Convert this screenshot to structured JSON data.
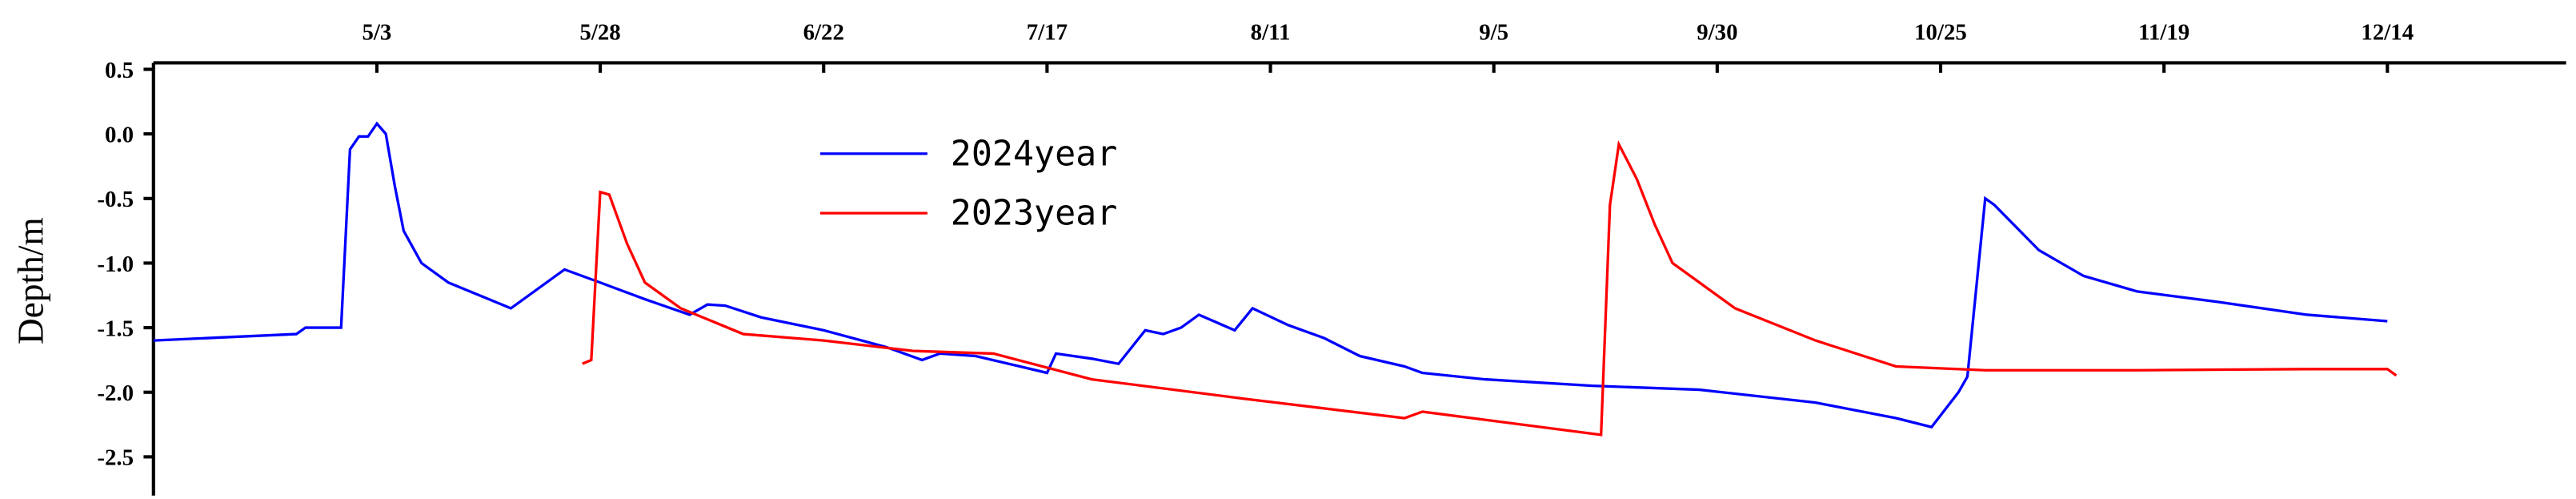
{
  "chart_data": {
    "type": "line",
    "y_label": "Depth/m",
    "xlim": [
      "4/8",
      "1/3"
    ],
    "xticks": [
      "5/3",
      "5/28",
      "6/22",
      "7/17",
      "8/11",
      "9/5",
      "9/30",
      "10/25",
      "11/19",
      "12/14"
    ],
    "ylim": [
      -2.8,
      0.55
    ],
    "yticks": [
      0.5,
      {
        "value": 0,
        "label": "0.0"
      },
      -0.5,
      {
        "value": -1,
        "label": "-1.0"
      },
      -1.5,
      {
        "value": -2,
        "label": "-2.0"
      },
      -2.5
    ],
    "series": [
      {
        "name": "2024year",
        "color": "#0000ff",
        "x": [
          "4/8",
          "4/24",
          "4/25",
          "4/29",
          "4/30",
          "5/1",
          "5/2",
          "5/3",
          "5/4",
          "5/5",
          "5/6",
          "5/8",
          "5/11",
          "5/18",
          "5/20",
          "5/24",
          "5/28",
          "6/2",
          "6/7",
          "6/9",
          "6/11",
          "6/15",
          "6/22",
          "6/29",
          "7/3",
          "7/5",
          "7/9",
          "7/17",
          "7/18",
          "7/22",
          "7/25",
          "7/28",
          "7/30",
          "8/1",
          "8/3",
          "8/7",
          "8/9",
          "8/13",
          "8/17",
          "8/21",
          "8/26",
          "8/28",
          "9/4",
          "9/16",
          "9/28",
          "10/11",
          "10/20",
          "10/24",
          "10/27",
          "10/28",
          "10/30",
          "10/31",
          "11/5",
          "11/10",
          "11/16",
          "11/25",
          "12/5",
          "12/14"
        ],
        "values": [
          -1.6,
          -1.55,
          -1.5,
          -1.5,
          -0.12,
          -0.02,
          -0.02,
          0.08,
          0.0,
          -0.4,
          -0.75,
          -1.0,
          -1.15,
          -1.35,
          -1.25,
          -1.05,
          -1.15,
          -1.28,
          -1.4,
          -1.32,
          -1.33,
          -1.42,
          -1.52,
          -1.65,
          -1.75,
          -1.7,
          -1.72,
          -1.85,
          -1.7,
          -1.74,
          -1.78,
          -1.52,
          -1.55,
          -1.5,
          -1.4,
          -1.52,
          -1.35,
          -1.48,
          -1.58,
          -1.72,
          -1.8,
          -1.85,
          -1.9,
          -1.95,
          -1.98,
          -2.08,
          -2.2,
          -2.27,
          -2.0,
          -1.88,
          -0.5,
          -0.55,
          -0.9,
          -1.1,
          -1.22,
          -1.3,
          -1.4,
          -1.45
        ]
      },
      {
        "name": "2023year",
        "color": "#ff0000",
        "x": [
          "5/26",
          "5/27",
          "5/28",
          "5/29",
          "5/31",
          "6/2",
          "6/6",
          "6/13",
          "6/22",
          "7/2",
          "7/11",
          "7/22",
          "8/8",
          "8/26",
          "8/28",
          "9/17",
          "9/18",
          "9/19",
          "9/21",
          "9/23",
          "9/25",
          "9/27",
          "10/2",
          "10/11",
          "10/20",
          "10/30",
          "11/16",
          "12/5",
          "12/14",
          "12/15"
        ],
        "values": [
          -1.78,
          -1.75,
          -0.45,
          -0.47,
          -0.85,
          -1.15,
          -1.35,
          -1.55,
          -1.6,
          -1.68,
          -1.7,
          -1.9,
          -2.05,
          -2.2,
          -2.15,
          -2.33,
          -0.55,
          -0.08,
          -0.35,
          -0.7,
          -1.0,
          -1.1,
          -1.35,
          -1.6,
          -1.8,
          -1.83,
          -1.83,
          -1.82,
          -1.82,
          -1.87
        ]
      }
    ]
  }
}
